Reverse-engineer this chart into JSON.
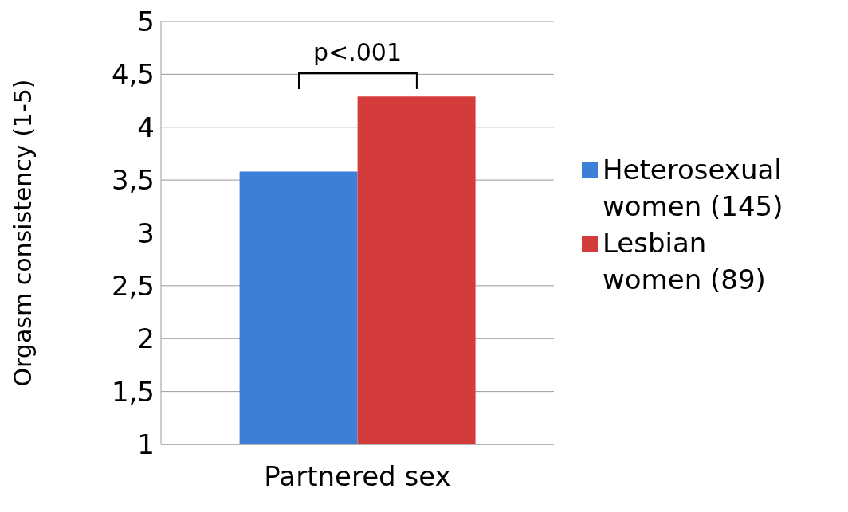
{
  "chart_data": {
    "type": "bar",
    "categories": [
      "Partnered sex"
    ],
    "series": [
      {
        "name": "Heterosexual women (145)",
        "color": "#3d7fd6",
        "values": [
          3.58
        ]
      },
      {
        "name": "Lesbian women (89)",
        "color": "#d43c3c",
        "values": [
          4.29
        ]
      }
    ],
    "ylabel": "Orgasm consistency (1-5)",
    "ylim": [
      1,
      5
    ],
    "yticks": [
      1,
      {
        "value": 1.5,
        "label": "1,5"
      },
      2,
      {
        "value": 2.5,
        "label": "2,5"
      },
      3,
      {
        "value": 3.5,
        "label": "3,5"
      },
      4,
      {
        "value": 4.5,
        "label": "4,5"
      },
      5
    ],
    "grid": "y",
    "legend": "right",
    "annotations": [
      "p<.001"
    ]
  }
}
